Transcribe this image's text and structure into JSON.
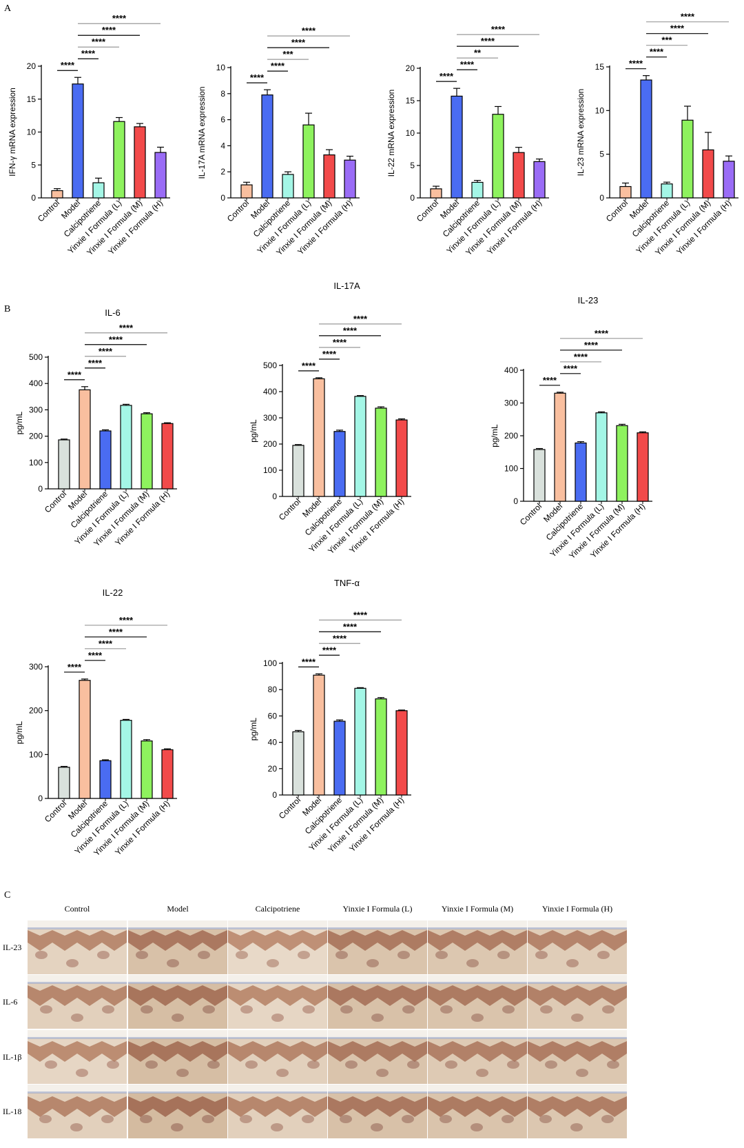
{
  "categories": [
    "Control",
    "Model",
    "Calcipotriene",
    "Yinxie I Formula (L)",
    "Yinxie I Formula (M)",
    "Yinxie I Formula (H)"
  ],
  "panel_labels": {
    "a": "A",
    "b": "B",
    "c": "C"
  },
  "chart_data": [
    {
      "type": "bar",
      "title": "",
      "ylabel": "IFN-γ mRNA expression",
      "ylim": [
        0,
        20
      ],
      "yticks": [
        0,
        5,
        10,
        15,
        20
      ],
      "values": [
        1.1,
        17.3,
        2.3,
        11.6,
        10.8,
        6.9
      ],
      "errors": [
        0.3,
        1.0,
        0.7,
        0.6,
        0.5,
        0.8
      ],
      "colors": [
        "#f9bf9f",
        "#4a6cf2",
        "#a4f6e6",
        "#8ef25e",
        "#f24a4a",
        "#9a6cf6"
      ],
      "significance": [
        {
          "from": 0,
          "to": 1,
          "label": "****"
        },
        {
          "from": 1,
          "to": 2,
          "label": "****"
        },
        {
          "from": 1,
          "to": 3,
          "label": "****"
        },
        {
          "from": 1,
          "to": 4,
          "label": "****"
        },
        {
          "from": 1,
          "to": 5,
          "label": "****"
        }
      ]
    },
    {
      "type": "bar",
      "title": "",
      "ylabel": "IL-17A mRNA expression",
      "ylim": [
        0,
        10
      ],
      "yticks": [
        0,
        2,
        4,
        6,
        8,
        10
      ],
      "values": [
        1.0,
        7.9,
        1.8,
        5.6,
        3.3,
        2.9
      ],
      "errors": [
        0.2,
        0.4,
        0.2,
        0.9,
        0.4,
        0.3
      ],
      "colors": [
        "#f9bf9f",
        "#4a6cf2",
        "#a4f6e6",
        "#8ef25e",
        "#f24a4a",
        "#9a6cf6"
      ],
      "significance": [
        {
          "from": 0,
          "to": 1,
          "label": "****"
        },
        {
          "from": 1,
          "to": 2,
          "label": "****"
        },
        {
          "from": 1,
          "to": 3,
          "label": "***"
        },
        {
          "from": 1,
          "to": 4,
          "label": "****"
        },
        {
          "from": 1,
          "to": 5,
          "label": "****"
        }
      ]
    },
    {
      "type": "bar",
      "title": "",
      "ylabel": "IL-22 mRNA expression",
      "ylim": [
        0,
        20
      ],
      "yticks": [
        0,
        5,
        10,
        15,
        20
      ],
      "values": [
        1.4,
        15.7,
        2.4,
        12.9,
        7.0,
        5.6
      ],
      "errors": [
        0.4,
        1.2,
        0.3,
        1.2,
        0.8,
        0.4
      ],
      "colors": [
        "#f9bf9f",
        "#4a6cf2",
        "#a4f6e6",
        "#8ef25e",
        "#f24a4a",
        "#9a6cf6"
      ],
      "significance": [
        {
          "from": 0,
          "to": 1,
          "label": "****"
        },
        {
          "from": 1,
          "to": 2,
          "label": "****"
        },
        {
          "from": 1,
          "to": 3,
          "label": "**"
        },
        {
          "from": 1,
          "to": 4,
          "label": "****"
        },
        {
          "from": 1,
          "to": 5,
          "label": "****"
        }
      ]
    },
    {
      "type": "bar",
      "title": "",
      "ylabel": "IL-23 mRNA expression",
      "ylim": [
        0,
        15
      ],
      "yticks": [
        0,
        5,
        10,
        15
      ],
      "values": [
        1.3,
        13.5,
        1.6,
        8.9,
        5.5,
        4.2
      ],
      "errors": [
        0.4,
        0.5,
        0.2,
        1.6,
        2.0,
        0.6
      ],
      "colors": [
        "#f9bf9f",
        "#4a6cf2",
        "#a4f6e6",
        "#8ef25e",
        "#f24a4a",
        "#9a6cf6"
      ],
      "significance": [
        {
          "from": 0,
          "to": 1,
          "label": "****"
        },
        {
          "from": 1,
          "to": 2,
          "label": "****"
        },
        {
          "from": 1,
          "to": 3,
          "label": "***"
        },
        {
          "from": 1,
          "to": 4,
          "label": "****"
        },
        {
          "from": 1,
          "to": 5,
          "label": "****"
        }
      ]
    },
    {
      "type": "bar",
      "title": "IL-6",
      "ylabel": "pg/mL",
      "ylim": [
        0,
        500
      ],
      "yticks": [
        0,
        100,
        200,
        300,
        400,
        500
      ],
      "values": [
        186,
        376,
        220,
        317,
        285,
        248
      ],
      "errors": [
        3,
        12,
        4,
        4,
        4,
        3
      ],
      "colors": [
        "#d9e1dc",
        "#f9bf9f",
        "#4a6cf2",
        "#a4f6e6",
        "#8ef25e",
        "#f24a4a"
      ],
      "significance": [
        {
          "from": 0,
          "to": 1,
          "label": "****"
        },
        {
          "from": 1,
          "to": 2,
          "label": "****"
        },
        {
          "from": 1,
          "to": 3,
          "label": "****"
        },
        {
          "from": 1,
          "to": 4,
          "label": "****"
        },
        {
          "from": 1,
          "to": 5,
          "label": "****"
        }
      ]
    },
    {
      "type": "bar",
      "title": "IL-17A",
      "ylabel": "pg/mL",
      "ylim": [
        0,
        500
      ],
      "yticks": [
        0,
        100,
        200,
        300,
        400,
        500
      ],
      "values": [
        195,
        449,
        248,
        382,
        337,
        292
      ],
      "errors": [
        3,
        4,
        5,
        3,
        5,
        4
      ],
      "colors": [
        "#d9e1dc",
        "#f9bf9f",
        "#4a6cf2",
        "#a4f6e6",
        "#8ef25e",
        "#f24a4a"
      ],
      "significance": [
        {
          "from": 0,
          "to": 1,
          "label": "****"
        },
        {
          "from": 1,
          "to": 2,
          "label": "****"
        },
        {
          "from": 1,
          "to": 3,
          "label": "****"
        },
        {
          "from": 1,
          "to": 4,
          "label": "****"
        },
        {
          "from": 1,
          "to": 5,
          "label": "****"
        }
      ]
    },
    {
      "type": "bar",
      "title": "IL-23",
      "ylabel": "pg/mL",
      "ylim": [
        0,
        400
      ],
      "yticks": [
        0,
        100,
        200,
        300,
        400
      ],
      "values": [
        158,
        330,
        178,
        270,
        231,
        209
      ],
      "errors": [
        3,
        3,
        4,
        3,
        4,
        3
      ],
      "colors": [
        "#d9e1dc",
        "#f9bf9f",
        "#4a6cf2",
        "#a4f6e6",
        "#8ef25e",
        "#f24a4a"
      ],
      "significance": [
        {
          "from": 0,
          "to": 1,
          "label": "****"
        },
        {
          "from": 1,
          "to": 2,
          "label": "****"
        },
        {
          "from": 1,
          "to": 3,
          "label": "****"
        },
        {
          "from": 1,
          "to": 4,
          "label": "****"
        },
        {
          "from": 1,
          "to": 5,
          "label": "****"
        }
      ]
    },
    {
      "type": "bar",
      "title": "IL-22",
      "ylabel": "pg/mL",
      "ylim": [
        0,
        300
      ],
      "yticks": [
        0,
        100,
        200,
        300
      ],
      "values": [
        71,
        269,
        86,
        178,
        131,
        111
      ],
      "errors": [
        2,
        3,
        2,
        2,
        3,
        2
      ],
      "colors": [
        "#d9e1dc",
        "#f9bf9f",
        "#4a6cf2",
        "#a4f6e6",
        "#8ef25e",
        "#f24a4a"
      ],
      "significance": [
        {
          "from": 0,
          "to": 1,
          "label": "****"
        },
        {
          "from": 1,
          "to": 2,
          "label": "****"
        },
        {
          "from": 1,
          "to": 3,
          "label": "****"
        },
        {
          "from": 1,
          "to": 4,
          "label": "****"
        },
        {
          "from": 1,
          "to": 5,
          "label": "****"
        }
      ]
    },
    {
      "type": "bar",
      "title": "TNF-α",
      "ylabel": "pg/mL",
      "ylim": [
        0,
        100
      ],
      "yticks": [
        0,
        20,
        40,
        60,
        80,
        100
      ],
      "values": [
        48,
        91,
        56,
        81,
        73,
        64
      ],
      "errors": [
        1,
        1,
        1,
        0.5,
        1,
        0.5
      ],
      "colors": [
        "#d9e1dc",
        "#f9bf9f",
        "#4a6cf2",
        "#a4f6e6",
        "#8ef25e",
        "#f24a4a"
      ],
      "significance": [
        {
          "from": 0,
          "to": 1,
          "label": "****"
        },
        {
          "from": 1,
          "to": 2,
          "label": "****"
        },
        {
          "from": 1,
          "to": 3,
          "label": "****"
        },
        {
          "from": 1,
          "to": 4,
          "label": "****"
        },
        {
          "from": 1,
          "to": 5,
          "label": "****"
        }
      ]
    }
  ],
  "ihc": {
    "columns": [
      "Control",
      "Model",
      "Calcipotriene",
      "Yinxie I Formula (L)",
      "Yinxie I Formula (M)",
      "Yinxie I Formula (H)"
    ],
    "rows": [
      "IL-23",
      "IL-6",
      "IL-1β",
      "IL-18"
    ],
    "stain_intensity": [
      [
        0.25,
        0.55,
        0.15,
        0.5,
        0.45,
        0.35
      ],
      [
        0.3,
        0.6,
        0.2,
        0.55,
        0.5,
        0.4
      ],
      [
        0.2,
        0.6,
        0.3,
        0.5,
        0.4,
        0.45
      ],
      [
        0.3,
        0.65,
        0.3,
        0.55,
        0.5,
        0.45
      ]
    ]
  }
}
